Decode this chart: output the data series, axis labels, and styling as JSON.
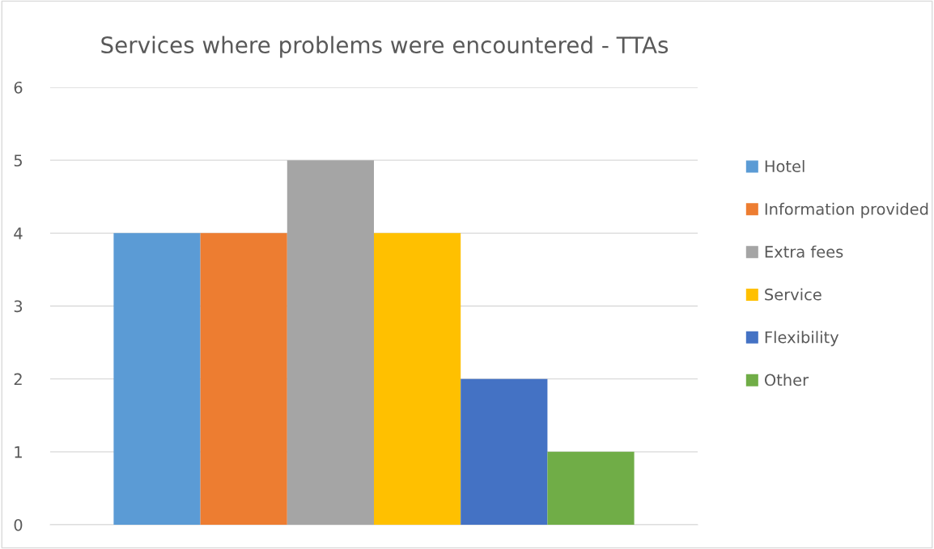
{
  "chart_data": {
    "type": "bar",
    "title": "Services where problems were encountered - TTAs",
    "categories": [
      null
    ],
    "series": [
      {
        "name": "Hotel",
        "color": "#5b9bd5",
        "values": [
          4
        ]
      },
      {
        "name": "Information provided",
        "color": "#ed7d31",
        "values": [
          4
        ]
      },
      {
        "name": "Extra fees",
        "color": "#a5a5a5",
        "values": [
          5
        ]
      },
      {
        "name": "Service",
        "color": "#ffc000",
        "values": [
          4
        ]
      },
      {
        "name": "Flexibility",
        "color": "#4472c4",
        "values": [
          2
        ]
      },
      {
        "name": "Other",
        "color": "#70ad47",
        "values": [
          1
        ]
      }
    ],
    "ylim": [
      0,
      6
    ],
    "yticks": [
      0,
      1,
      2,
      3,
      4,
      5,
      6
    ],
    "grid": "y",
    "legend": "right"
  }
}
